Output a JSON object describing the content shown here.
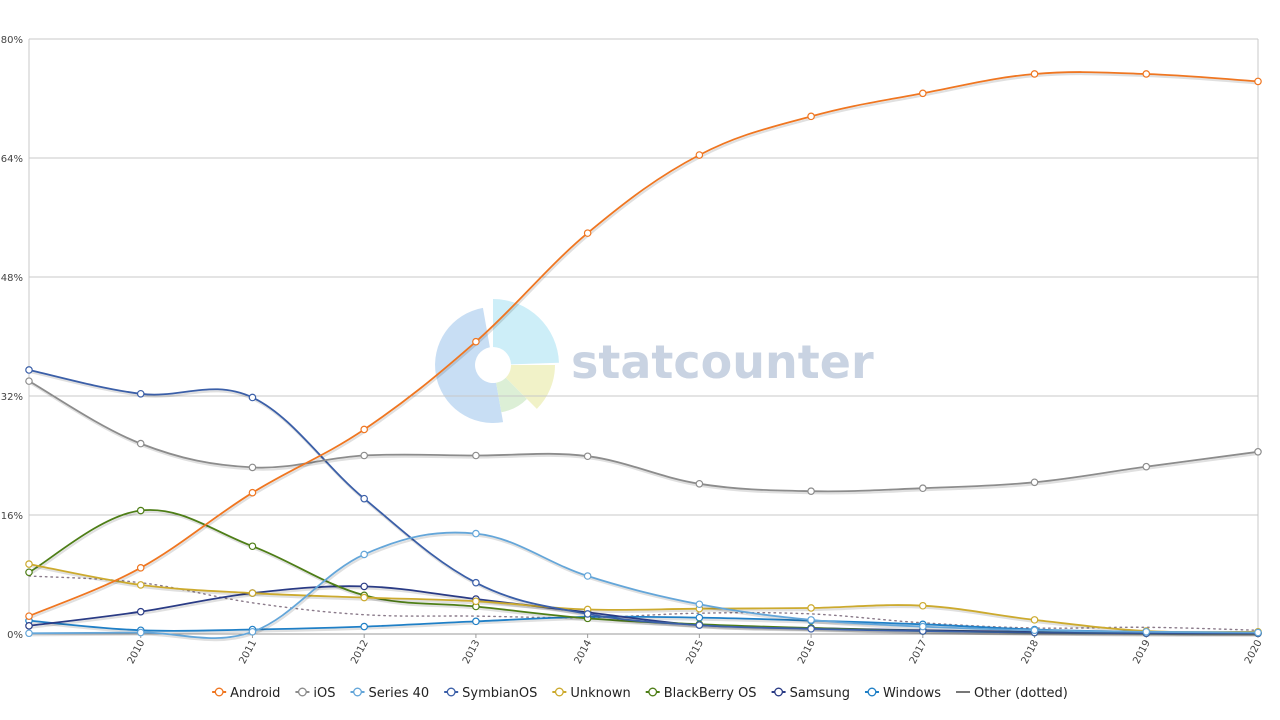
{
  "watermark": {
    "text": "statcounter"
  },
  "chart_data": {
    "type": "line",
    "title": "",
    "xlabel": "",
    "ylabel": "",
    "x_start": 2009,
    "x_tick_labels": [
      "2010",
      "2011",
      "2012",
      "2013",
      "2014",
      "2015",
      "2016",
      "2017",
      "2018",
      "2019",
      "2020"
    ],
    "ylim": [
      0,
      80
    ],
    "y_tick_labels": [
      "0%",
      "16%",
      "32%",
      "48%",
      "64%",
      "80%"
    ],
    "grid": true,
    "legend_position": "bottom",
    "series": [
      {
        "name": "Android",
        "color": "#ef7621",
        "values": [
          2.4,
          8.9,
          19.0,
          27.5,
          39.3,
          53.9,
          64.4,
          69.6,
          72.7,
          75.3,
          75.3,
          74.3
        ]
      },
      {
        "name": "iOS",
        "color": "#8c8c8c",
        "values": [
          34.0,
          25.6,
          22.4,
          24.0,
          24.0,
          23.9,
          20.2,
          19.2,
          19.6,
          20.4,
          22.5,
          24.5
        ]
      },
      {
        "name": "Series 40",
        "color": "#64a6d9",
        "values": [
          0.1,
          0.2,
          0.3,
          10.7,
          13.5,
          7.8,
          4.0,
          1.9,
          1.0,
          0.5,
          0.3,
          0.2
        ]
      },
      {
        "name": "SymbianOS",
        "color": "#3b5fa8",
        "values": [
          35.5,
          32.3,
          31.8,
          18.2,
          6.9,
          2.7,
          1.2,
          0.7,
          0.4,
          0.2,
          0.1,
          0.1
        ]
      },
      {
        "name": "Unknown",
        "color": "#ccaa2e",
        "values": [
          9.4,
          6.6,
          5.5,
          4.9,
          4.4,
          3.3,
          3.4,
          3.5,
          3.8,
          1.9,
          0.4,
          0.3
        ]
      },
      {
        "name": "BlackBerry OS",
        "color": "#4e7e17",
        "values": [
          8.3,
          16.6,
          11.8,
          5.2,
          3.7,
          2.1,
          1.3,
          0.8,
          0.4,
          0.2,
          0.1,
          0.1
        ]
      },
      {
        "name": "Samsung",
        "color": "#2a3b85",
        "values": [
          1.1,
          3.0,
          5.5,
          6.4,
          4.7,
          2.9,
          1.2,
          0.8,
          0.5,
          0.3,
          0.2,
          0.1
        ]
      },
      {
        "name": "Windows",
        "color": "#1f7fc6",
        "values": [
          1.8,
          0.5,
          0.6,
          1.0,
          1.7,
          2.3,
          2.2,
          1.8,
          1.3,
          0.6,
          0.3,
          0.2
        ]
      },
      {
        "name": "Other (dotted)",
        "color": "#777777",
        "dotted": true,
        "values": [
          7.8,
          6.9,
          4.2,
          2.6,
          2.4,
          2.2,
          2.8,
          2.7,
          1.5,
          0.8,
          0.9,
          0.5
        ]
      }
    ]
  }
}
